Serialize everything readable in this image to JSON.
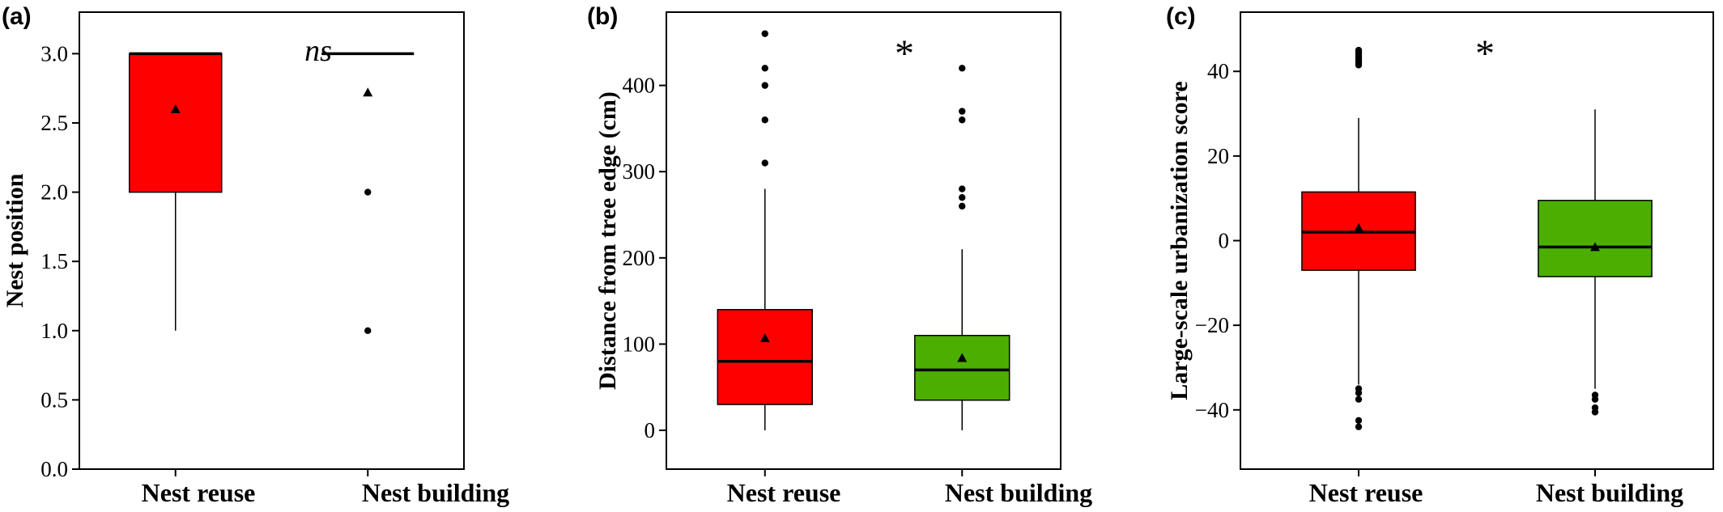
{
  "chart_data": [
    {
      "type": "box",
      "panel_label": "(a)",
      "ylabel": "Nest position",
      "ylim": [
        0.0,
        3.3
      ],
      "yticks": [
        0.0,
        0.5,
        1.0,
        1.5,
        2.0,
        2.5,
        3.0
      ],
      "ytick_labels": [
        "0.0",
        "0.5",
        "1.0",
        "1.5",
        "2.0",
        "2.5",
        "3.0"
      ],
      "annotation": "ns",
      "categories": [
        "Nest reuse",
        "Nest building"
      ],
      "boxes": [
        {
          "category": "Nest reuse",
          "color": "#ff0000",
          "q1": 2.0,
          "median": 3.0,
          "q3": 3.0,
          "whisker_low": 1.0,
          "whisker_high": 3.0,
          "mean": 2.6,
          "outliers": []
        },
        {
          "category": "Nest building",
          "color": "#4caf00",
          "q1": 3.0,
          "median": 3.0,
          "q3": 3.0,
          "whisker_low": 3.0,
          "whisker_high": 3.0,
          "mean": 2.72,
          "outliers": [
            2.0,
            1.0
          ]
        }
      ]
    },
    {
      "type": "box",
      "panel_label": "(b)",
      "ylabel": "Distance from tree edge (cm)",
      "ylim": [
        -45,
        485
      ],
      "yticks": [
        0,
        100,
        200,
        300,
        400
      ],
      "ytick_labels": [
        "0",
        "100",
        "200",
        "300",
        "400"
      ],
      "annotation": "*",
      "categories": [
        "Nest reuse",
        "Nest building"
      ],
      "boxes": [
        {
          "category": "Nest reuse",
          "color": "#ff0000",
          "q1": 30,
          "median": 80,
          "q3": 140,
          "whisker_low": 0,
          "whisker_high": 280,
          "mean": 107,
          "outliers": [
            310,
            360,
            400,
            420,
            460
          ]
        },
        {
          "category": "Nest building",
          "color": "#4caf00",
          "q1": 35,
          "median": 70,
          "q3": 110,
          "whisker_low": 0,
          "whisker_high": 210,
          "mean": 84,
          "outliers": [
            260,
            270,
            280,
            360,
            370,
            420
          ]
        }
      ]
    },
    {
      "type": "box",
      "panel_label": "(c)",
      "ylabel": "Large-scale urbanization score",
      "ylim": [
        -54,
        54
      ],
      "yticks": [
        -40,
        -20,
        0,
        20,
        40
      ],
      "ytick_labels": [
        "−40",
        "−20",
        "0",
        "20",
        "40"
      ],
      "annotation": "*",
      "categories": [
        "Nest reuse",
        "Nest building"
      ],
      "boxes": [
        {
          "category": "Nest reuse",
          "color": "#ff0000",
          "q1": -7,
          "median": 2,
          "q3": 11.5,
          "whisker_low": -34,
          "whisker_high": 29,
          "mean": 3,
          "outliers": [
            41.5,
            42,
            42.5,
            43,
            43.5,
            44,
            44.5,
            45,
            -35,
            -36,
            -37.5,
            -42.5,
            -44
          ]
        },
        {
          "category": "Nest building",
          "color": "#4caf00",
          "q1": -8.5,
          "median": -1.5,
          "q3": 9.5,
          "whisker_low": -35,
          "whisker_high": 31,
          "mean": -1.5,
          "outliers": [
            -36.5,
            -37.5,
            -39.5,
            -40.5
          ]
        }
      ]
    }
  ]
}
